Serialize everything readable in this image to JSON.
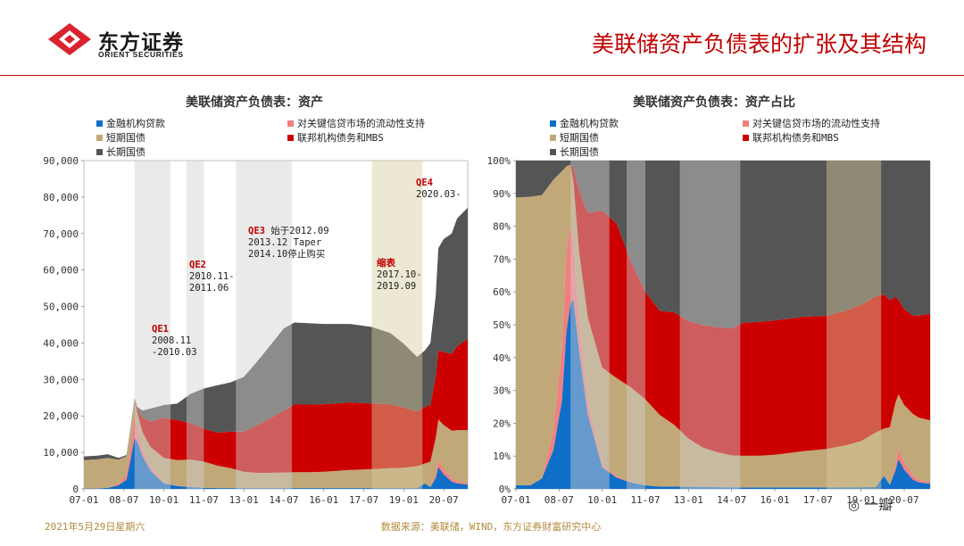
{
  "header": {
    "logo_cn": "东方证券",
    "logo_en": "ORIENT SECURITIES",
    "title": "美联储资产负债表的扩张及其结构"
  },
  "colors": {
    "loans": "#0f6ec8",
    "liquidity": "#f08080",
    "tbills": "#c0a878",
    "mbs": "#cc0000",
    "notes": "#555555",
    "accent": "#c00000"
  },
  "legend": [
    {
      "label": "金融机构贷款",
      "color": "#0f6ec8"
    },
    {
      "label": "对关键信贷市场的流动性支持",
      "color": "#f08080"
    },
    {
      "label": "短期国债",
      "color": "#c0a878"
    },
    {
      "label": "联邦机构债务和MBS",
      "color": "#cc0000"
    },
    {
      "label": "长期国债",
      "color": "#555555"
    }
  ],
  "chart_data": [
    {
      "type": "area",
      "stacked": true,
      "title": "美联储资产负债表：资产",
      "ylim": [
        0,
        90000
      ],
      "yticks": [
        "0",
        "10,000",
        "20,000",
        "30,000",
        "40,000",
        "50,000",
        "60,000",
        "70,000",
        "80,000",
        "90,000"
      ],
      "xticks": [
        "07-01",
        "08-07",
        "10-01",
        "11-07",
        "13-01",
        "14-07",
        "16-01",
        "17-07",
        "19-01",
        "20-07"
      ],
      "x": [
        2007.0,
        2007.5,
        2007.9,
        2008.3,
        2008.6,
        2008.75,
        2008.9,
        2009.0,
        2009.2,
        2009.5,
        2010.0,
        2010.5,
        2011.0,
        2011.5,
        2012.0,
        2012.5,
        2013.0,
        2013.5,
        2014.0,
        2014.5,
        2014.9,
        2015.5,
        2016.0,
        2017.0,
        2017.8,
        2018.5,
        2019.0,
        2019.5,
        2019.8,
        2020.0,
        2020.2,
        2020.3,
        2020.5,
        2020.8,
        2021.0,
        2021.4
      ],
      "series": [
        {
          "name": "金融机构贷款",
          "values": [
            100,
            100,
            300,
            1000,
            2500,
            8000,
            14000,
            13000,
            9000,
            5000,
            1500,
            800,
            500,
            300,
            200,
            200,
            200,
            200,
            200,
            200,
            200,
            200,
            200,
            200,
            200,
            200,
            200,
            200,
            1500,
            500,
            3000,
            6000,
            4000,
            2000,
            1500,
            1200
          ]
        },
        {
          "name": "对关键信贷市场的流动性支持",
          "values": [
            0,
            0,
            0,
            500,
            1500,
            4000,
            6000,
            4000,
            2000,
            1000,
            200,
            100,
            50,
            0,
            0,
            0,
            0,
            0,
            0,
            0,
            0,
            0,
            0,
            0,
            0,
            0,
            0,
            0,
            0,
            0,
            1000,
            2000,
            1500,
            1000,
            600,
            400
          ]
        },
        {
          "name": "短期国债",
          "values": [
            7800,
            8000,
            8200,
            6500,
            5000,
            4500,
            4500,
            4000,
            4500,
            5500,
            6800,
            7000,
            7500,
            7200,
            6200,
            5500,
            4500,
            4200,
            4200,
            4300,
            4400,
            4400,
            4500,
            5000,
            5200,
            5500,
            5600,
            6000,
            5500,
            7000,
            10000,
            11000,
            12000,
            13000,
            14000,
            14500
          ]
        },
        {
          "name": "联邦机构债务和MBS",
          "values": [
            0,
            0,
            0,
            0,
            0,
            0,
            0,
            1000,
            4000,
            7000,
            11000,
            11000,
            10000,
            9000,
            9000,
            10000,
            11000,
            13000,
            15000,
            17000,
            18500,
            18500,
            18500,
            18500,
            18000,
            17500,
            16500,
            15000,
            15500,
            15500,
            17000,
            19000,
            20000,
            21000,
            23000,
            25000
          ]
        },
        {
          "name": "长期国债",
          "values": [
            1000,
            1000,
            1000,
            500,
            300,
            300,
            300,
            500,
            2000,
            3500,
            3500,
            4500,
            8000,
            11000,
            13000,
            13500,
            15000,
            17500,
            20000,
            22500,
            22500,
            22300,
            22000,
            21500,
            21000,
            19500,
            17500,
            15000,
            15500,
            17000,
            22000,
            28000,
            31000,
            33000,
            35000,
            36000
          ]
        }
      ]
    },
    {
      "type": "area",
      "stacked": true,
      "percent": true,
      "title": "美联储资产负债表：资产占比",
      "ylim": [
        0,
        100
      ],
      "yticks": [
        "0%",
        "10%",
        "20%",
        "30%",
        "40%",
        "50%",
        "60%",
        "70%",
        "80%",
        "90%",
        "100%"
      ],
      "xticks": [
        "07-01",
        "08-07",
        "10-01",
        "11-07",
        "13-01",
        "14-07",
        "16-01",
        "17-07",
        "19-01",
        "20-07"
      ]
    }
  ],
  "annotations": [
    {
      "tag": "QE1",
      "text": [
        "2008.11",
        "-2010.03"
      ]
    },
    {
      "tag": "QE2",
      "text": [
        "2010.11-",
        "2011.06"
      ]
    },
    {
      "tag": "QE3",
      "tag_suffix": " 始于2012.09",
      "text": [
        "2013.12 Taper",
        "2014.10停止购买"
      ]
    },
    {
      "tag": "缩表",
      "text": [
        "2017.10-",
        "2019.09"
      ]
    },
    {
      "tag": "QE4",
      "text": [
        "2020.03-"
      ]
    }
  ],
  "footer": {
    "date": "2021年5月29日星期六",
    "source": "数据来源：美联储，WIND，东方证券财富研究中心"
  },
  "watermark": "一瓣"
}
